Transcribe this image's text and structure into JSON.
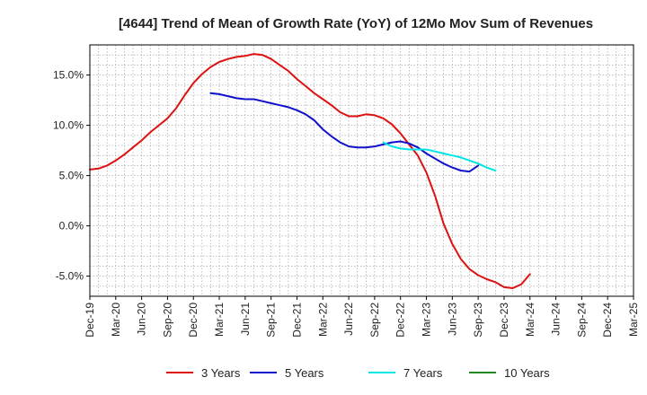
{
  "chart_data": {
    "type": "line",
    "title": "[4644]  Trend of Mean of Growth Rate (YoY) of 12Mo Mov Sum of Revenues",
    "xlabel": "",
    "ylabel": "",
    "ylim": [
      -7,
      18
    ],
    "y_ticks": [
      -5,
      0,
      5,
      10,
      15
    ],
    "y_tick_labels": [
      "-5.0%",
      "0.0%",
      "5.0%",
      "10.0%",
      "15.0%"
    ],
    "x_tick_labels": [
      "Dec-19",
      "Mar-20",
      "Jun-20",
      "Sep-20",
      "Dec-20",
      "Mar-21",
      "Jun-21",
      "Sep-21",
      "Dec-21",
      "Mar-22",
      "Jun-22",
      "Sep-22",
      "Dec-22",
      "Mar-23",
      "Jun-23",
      "Sep-23",
      "Dec-23",
      "Mar-24",
      "Jun-24",
      "Sep-24",
      "Dec-24",
      "Mar-25"
    ],
    "grid": true,
    "legend_position": "bottom",
    "series": [
      {
        "name": "3 Years",
        "color": "#dd1111",
        "values": [
          5.6,
          5.7,
          6.0,
          6.5,
          7.1,
          7.8,
          8.5,
          9.3,
          10.0,
          10.7,
          11.7,
          13.0,
          14.2,
          15.1,
          15.8,
          16.3,
          16.6,
          16.8,
          16.9,
          17.1,
          17.0,
          16.6,
          16.0,
          15.4,
          14.6,
          13.9,
          13.2,
          12.6,
          12.0,
          11.3,
          10.9,
          10.9,
          11.1,
          11.0,
          10.7,
          10.1,
          9.2,
          8.1,
          7.0,
          5.3,
          3.0,
          0.2,
          -1.8,
          -3.3,
          -4.3,
          -4.9,
          -5.3,
          -5.6,
          -6.1,
          -6.2,
          -5.8,
          -4.8
        ]
      },
      {
        "name": "5 Years",
        "color": "#1111cc",
        "values": [
          null,
          null,
          null,
          null,
          null,
          null,
          null,
          null,
          null,
          null,
          null,
          null,
          null,
          null,
          13.2,
          13.1,
          12.9,
          12.7,
          12.6,
          12.6,
          12.4,
          12.2,
          12.0,
          11.8,
          11.5,
          11.1,
          10.5,
          9.6,
          8.9,
          8.3,
          7.9,
          7.8,
          7.8,
          7.9,
          8.1,
          8.3,
          8.4,
          8.2,
          7.8,
          7.2,
          6.7,
          6.2,
          5.8,
          5.5,
          5.4,
          6.0
        ]
      },
      {
        "name": "7 Years",
        "color": "#00e5e5",
        "values": [
          null,
          null,
          null,
          null,
          null,
          null,
          null,
          null,
          null,
          null,
          null,
          null,
          null,
          null,
          null,
          null,
          null,
          null,
          null,
          null,
          null,
          null,
          null,
          null,
          null,
          null,
          null,
          null,
          null,
          null,
          null,
          null,
          null,
          null,
          8.3,
          7.9,
          7.7,
          7.6,
          7.6,
          7.6,
          7.4,
          7.2,
          7.0,
          6.8,
          6.5,
          6.2,
          5.8,
          5.5
        ]
      },
      {
        "name": "10 Years",
        "color": "#228822",
        "values": []
      }
    ]
  }
}
